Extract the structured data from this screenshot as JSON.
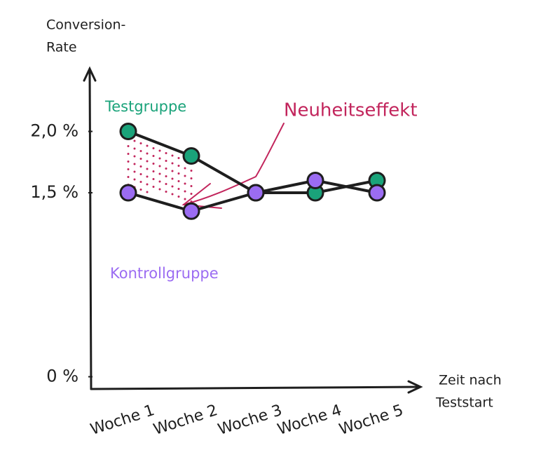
{
  "chart_data": {
    "type": "line",
    "y_label": [
      "Conversion-",
      "Rate"
    ],
    "x_label": [
      "Zeit nach",
      "Teststart"
    ],
    "annotations": [
      "Neuheitseffekt"
    ],
    "categories": [
      "Woche 1",
      "Woche 2",
      "Woche 3",
      "Woche 4",
      "Woche 5"
    ],
    "series": [
      {
        "name": "Testgruppe",
        "color": "#1aa37a",
        "values": [
          2.0,
          1.8,
          1.5,
          1.5,
          1.6
        ]
      },
      {
        "name": "Kontrollgruppe",
        "color": "#9b6cf2",
        "values": [
          1.5,
          1.35,
          1.5,
          1.6,
          1.5
        ]
      }
    ],
    "ylim": [
      -0.1,
      2.5
    ],
    "yticks": [
      {
        "value": 0,
        "label": "0 %"
      },
      {
        "value": 1.5,
        "label": "1,5 %"
      },
      {
        "value": 2.0,
        "label": "2,0 %"
      }
    ],
    "grid": false
  }
}
